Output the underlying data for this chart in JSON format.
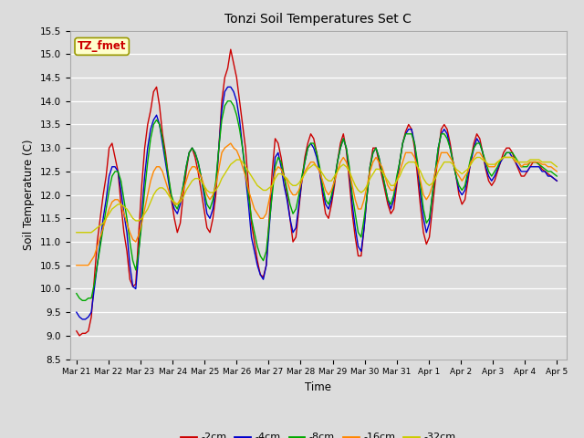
{
  "title": "Tonzi Soil Temperatures Set C",
  "xlabel": "Time",
  "ylabel": "Soil Temperature (C)",
  "ylim": [
    8.5,
    15.5
  ],
  "yticks": [
    8.5,
    9.0,
    9.5,
    10.0,
    10.5,
    11.0,
    11.5,
    12.0,
    12.5,
    13.0,
    13.5,
    14.0,
    14.5,
    15.0,
    15.5
  ],
  "xtick_labels": [
    "Mar 21",
    "Mar 22",
    "Mar 23",
    "Mar 24",
    "Mar 25",
    "Mar 26",
    "Mar 27",
    "Mar 28",
    "Mar 29",
    "Mar 30",
    "Mar 31",
    "Apr 1",
    "Apr 2",
    "Apr 3",
    "Apr 4",
    "Apr 5"
  ],
  "background_color": "#dcdcdc",
  "plot_bg_color": "#dcdcdc",
  "series_colors": [
    "#cc0000",
    "#0000cc",
    "#00aa00",
    "#ff8800",
    "#cccc00"
  ],
  "series_labels": [
    "-2cm",
    "-4cm",
    "-8cm",
    "-16cm",
    "-32cm"
  ],
  "annotation_text": "TZ_fmet",
  "annotation_bg": "#ffffcc",
  "annotation_border": "#999900",
  "annotation_text_color": "#cc0000",
  "series": {
    "depth_2cm": [
      9.1,
      9.0,
      9.05,
      9.05,
      9.1,
      9.4,
      10.2,
      11.0,
      11.5,
      12.0,
      12.4,
      13.0,
      13.1,
      12.8,
      12.5,
      11.8,
      11.2,
      10.8,
      10.2,
      10.05,
      10.1,
      11.2,
      12.2,
      13.0,
      13.5,
      13.8,
      14.2,
      14.3,
      13.9,
      13.3,
      12.9,
      12.4,
      11.9,
      11.5,
      11.2,
      11.4,
      12.0,
      12.5,
      12.9,
      13.0,
      12.8,
      12.5,
      12.1,
      11.7,
      11.3,
      11.2,
      11.5,
      12.0,
      13.0,
      14.0,
      14.5,
      14.7,
      15.1,
      14.8,
      14.5,
      14.0,
      13.5,
      13.0,
      12.2,
      11.4,
      11.0,
      10.6,
      10.3,
      10.25,
      10.5,
      11.5,
      12.5,
      13.2,
      13.1,
      12.8,
      12.4,
      12.0,
      11.5,
      11.0,
      11.1,
      11.7,
      12.3,
      12.8,
      13.1,
      13.3,
      13.2,
      12.9,
      12.5,
      12.0,
      11.6,
      11.5,
      11.8,
      12.2,
      12.7,
      13.1,
      13.3,
      12.95,
      12.3,
      11.6,
      11.1,
      10.7,
      10.7,
      11.3,
      12.0,
      12.6,
      13.0,
      13.0,
      12.7,
      12.4,
      12.1,
      11.8,
      11.6,
      11.7,
      12.2,
      12.7,
      13.1,
      13.35,
      13.5,
      13.4,
      13.0,
      12.4,
      11.75,
      11.2,
      10.95,
      11.1,
      11.7,
      12.3,
      12.9,
      13.4,
      13.5,
      13.4,
      13.1,
      12.7,
      12.4,
      12.0,
      11.8,
      11.9,
      12.3,
      12.75,
      13.1,
      13.3,
      13.2,
      12.9,
      12.55,
      12.3,
      12.2,
      12.3,
      12.5,
      12.7,
      12.9,
      13.0,
      13.0,
      12.9,
      12.7,
      12.55,
      12.4,
      12.4,
      12.5,
      12.6,
      12.7,
      12.7,
      12.65,
      12.55,
      12.5,
      12.45,
      12.4,
      12.35,
      12.3
    ],
    "depth_4cm": [
      9.5,
      9.4,
      9.35,
      9.35,
      9.4,
      9.5,
      10.0,
      10.5,
      11.0,
      11.5,
      11.9,
      12.4,
      12.6,
      12.6,
      12.5,
      12.1,
      11.6,
      11.2,
      10.5,
      10.05,
      10.0,
      10.8,
      11.6,
      12.4,
      13.0,
      13.4,
      13.6,
      13.7,
      13.5,
      13.1,
      12.7,
      12.3,
      11.9,
      11.7,
      11.6,
      11.8,
      12.2,
      12.6,
      12.9,
      13.0,
      12.9,
      12.7,
      12.4,
      12.0,
      11.6,
      11.5,
      11.7,
      12.2,
      13.0,
      13.8,
      14.2,
      14.3,
      14.3,
      14.2,
      14.0,
      13.6,
      13.0,
      12.4,
      11.8,
      11.1,
      10.8,
      10.5,
      10.3,
      10.2,
      10.5,
      11.3,
      12.1,
      12.8,
      12.9,
      12.6,
      12.2,
      11.9,
      11.5,
      11.2,
      11.3,
      11.8,
      12.3,
      12.7,
      13.0,
      13.1,
      13.0,
      12.8,
      12.5,
      12.1,
      11.8,
      11.7,
      11.9,
      12.3,
      12.7,
      13.0,
      13.2,
      13.0,
      12.5,
      11.8,
      11.3,
      10.9,
      10.8,
      11.3,
      12.0,
      12.6,
      12.9,
      13.0,
      12.8,
      12.5,
      12.2,
      11.9,
      11.7,
      11.9,
      12.3,
      12.7,
      13.1,
      13.3,
      13.4,
      13.4,
      13.1,
      12.6,
      12.0,
      11.5,
      11.2,
      11.4,
      12.0,
      12.5,
      13.0,
      13.3,
      13.4,
      13.3,
      13.0,
      12.7,
      12.4,
      12.1,
      12.0,
      12.1,
      12.4,
      12.7,
      13.0,
      13.2,
      13.1,
      12.9,
      12.6,
      12.4,
      12.3,
      12.4,
      12.55,
      12.7,
      12.8,
      12.9,
      12.9,
      12.8,
      12.7,
      12.6,
      12.5,
      12.5,
      12.5,
      12.6,
      12.6,
      12.6,
      12.6,
      12.5,
      12.5,
      12.4,
      12.4,
      12.35,
      12.3
    ],
    "depth_8cm": [
      9.9,
      9.8,
      9.75,
      9.75,
      9.8,
      9.8,
      10.1,
      10.5,
      10.9,
      11.3,
      11.7,
      12.1,
      12.4,
      12.5,
      12.5,
      12.3,
      11.9,
      11.5,
      11.0,
      10.6,
      10.4,
      10.8,
      11.4,
      12.1,
      12.7,
      13.2,
      13.5,
      13.6,
      13.5,
      13.2,
      12.8,
      12.4,
      12.0,
      11.8,
      11.7,
      11.9,
      12.2,
      12.6,
      12.9,
      13.0,
      12.9,
      12.7,
      12.4,
      12.1,
      11.8,
      11.7,
      11.9,
      12.3,
      13.0,
      13.6,
      13.9,
      14.0,
      14.0,
      13.9,
      13.7,
      13.4,
      13.0,
      12.5,
      12.0,
      11.5,
      11.2,
      10.9,
      10.7,
      10.6,
      10.8,
      11.4,
      12.0,
      12.6,
      12.8,
      12.7,
      12.4,
      12.1,
      11.8,
      11.6,
      11.7,
      12.0,
      12.4,
      12.7,
      13.0,
      13.1,
      13.1,
      12.9,
      12.6,
      12.2,
      11.9,
      11.8,
      12.0,
      12.3,
      12.7,
      13.0,
      13.2,
      13.0,
      12.6,
      12.0,
      11.6,
      11.2,
      11.1,
      11.5,
      12.0,
      12.6,
      12.9,
      13.0,
      12.8,
      12.5,
      12.2,
      11.9,
      11.8,
      12.0,
      12.4,
      12.7,
      13.1,
      13.3,
      13.3,
      13.3,
      13.1,
      12.7,
      12.2,
      11.7,
      11.4,
      11.5,
      12.0,
      12.5,
      13.0,
      13.3,
      13.3,
      13.2,
      13.0,
      12.7,
      12.4,
      12.2,
      12.1,
      12.2,
      12.5,
      12.8,
      13.0,
      13.1,
      13.1,
      12.9,
      12.7,
      12.5,
      12.4,
      12.5,
      12.6,
      12.75,
      12.8,
      12.9,
      12.9,
      12.9,
      12.8,
      12.7,
      12.6,
      12.6,
      12.6,
      12.7,
      12.7,
      12.7,
      12.65,
      12.6,
      12.55,
      12.5,
      12.5,
      12.45,
      12.4
    ],
    "depth_16cm": [
      10.5,
      10.5,
      10.5,
      10.5,
      10.5,
      10.6,
      10.7,
      10.9,
      11.1,
      11.3,
      11.5,
      11.7,
      11.85,
      11.9,
      11.9,
      11.8,
      11.6,
      11.4,
      11.2,
      11.05,
      11.0,
      11.15,
      11.4,
      11.7,
      12.0,
      12.3,
      12.5,
      12.6,
      12.6,
      12.5,
      12.3,
      12.1,
      11.9,
      11.8,
      11.8,
      11.9,
      12.1,
      12.3,
      12.5,
      12.6,
      12.6,
      12.5,
      12.4,
      12.2,
      12.0,
      11.9,
      12.0,
      12.2,
      12.55,
      12.9,
      13.0,
      13.05,
      13.1,
      13.0,
      12.95,
      12.8,
      12.6,
      12.4,
      12.1,
      11.9,
      11.7,
      11.6,
      11.5,
      11.5,
      11.6,
      11.9,
      12.2,
      12.5,
      12.6,
      12.55,
      12.4,
      12.3,
      12.1,
      12.0,
      12.0,
      12.1,
      12.3,
      12.5,
      12.6,
      12.7,
      12.7,
      12.6,
      12.5,
      12.3,
      12.1,
      12.0,
      12.1,
      12.3,
      12.5,
      12.7,
      12.8,
      12.7,
      12.5,
      12.2,
      11.9,
      11.7,
      11.7,
      11.9,
      12.2,
      12.5,
      12.7,
      12.8,
      12.7,
      12.6,
      12.4,
      12.2,
      12.1,
      12.1,
      12.3,
      12.5,
      12.7,
      12.9,
      12.9,
      12.9,
      12.8,
      12.6,
      12.3,
      12.0,
      11.9,
      12.0,
      12.2,
      12.5,
      12.7,
      12.9,
      12.9,
      12.9,
      12.8,
      12.7,
      12.5,
      12.4,
      12.3,
      12.4,
      12.5,
      12.7,
      12.8,
      12.9,
      12.9,
      12.8,
      12.7,
      12.6,
      12.6,
      12.6,
      12.7,
      12.75,
      12.8,
      12.8,
      12.8,
      12.8,
      12.7,
      12.7,
      12.6,
      12.65,
      12.65,
      12.7,
      12.7,
      12.7,
      12.7,
      12.65,
      12.65,
      12.6,
      12.6,
      12.55,
      12.5
    ],
    "depth_32cm": [
      11.2,
      11.2,
      11.2,
      11.2,
      11.2,
      11.2,
      11.25,
      11.3,
      11.35,
      11.4,
      11.5,
      11.6,
      11.7,
      11.75,
      11.8,
      11.8,
      11.75,
      11.7,
      11.6,
      11.5,
      11.45,
      11.45,
      11.5,
      11.6,
      11.7,
      11.85,
      12.0,
      12.1,
      12.15,
      12.15,
      12.1,
      12.0,
      11.9,
      11.85,
      11.8,
      11.85,
      11.95,
      12.1,
      12.2,
      12.3,
      12.35,
      12.35,
      12.3,
      12.2,
      12.1,
      12.05,
      12.05,
      12.1,
      12.2,
      12.35,
      12.45,
      12.55,
      12.65,
      12.7,
      12.75,
      12.75,
      12.7,
      12.6,
      12.5,
      12.4,
      12.3,
      12.2,
      12.15,
      12.1,
      12.1,
      12.15,
      12.2,
      12.35,
      12.45,
      12.45,
      12.4,
      12.35,
      12.25,
      12.2,
      12.2,
      12.25,
      12.35,
      12.45,
      12.55,
      12.6,
      12.65,
      12.6,
      12.55,
      12.45,
      12.35,
      12.3,
      12.3,
      12.4,
      12.5,
      12.6,
      12.65,
      12.6,
      12.5,
      12.35,
      12.2,
      12.1,
      12.05,
      12.1,
      12.2,
      12.35,
      12.45,
      12.55,
      12.55,
      12.5,
      12.4,
      12.3,
      12.2,
      12.2,
      12.3,
      12.4,
      12.55,
      12.65,
      12.7,
      12.7,
      12.7,
      12.6,
      12.5,
      12.35,
      12.25,
      12.2,
      12.25,
      12.35,
      12.5,
      12.6,
      12.7,
      12.7,
      12.7,
      12.65,
      12.55,
      12.5,
      12.45,
      12.5,
      12.55,
      12.65,
      12.75,
      12.8,
      12.8,
      12.75,
      12.7,
      12.65,
      12.65,
      12.65,
      12.7,
      12.75,
      12.8,
      12.8,
      12.8,
      12.8,
      12.75,
      12.7,
      12.7,
      12.7,
      12.7,
      12.75,
      12.75,
      12.75,
      12.75,
      12.7,
      12.7,
      12.7,
      12.7,
      12.65,
      12.6
    ]
  }
}
